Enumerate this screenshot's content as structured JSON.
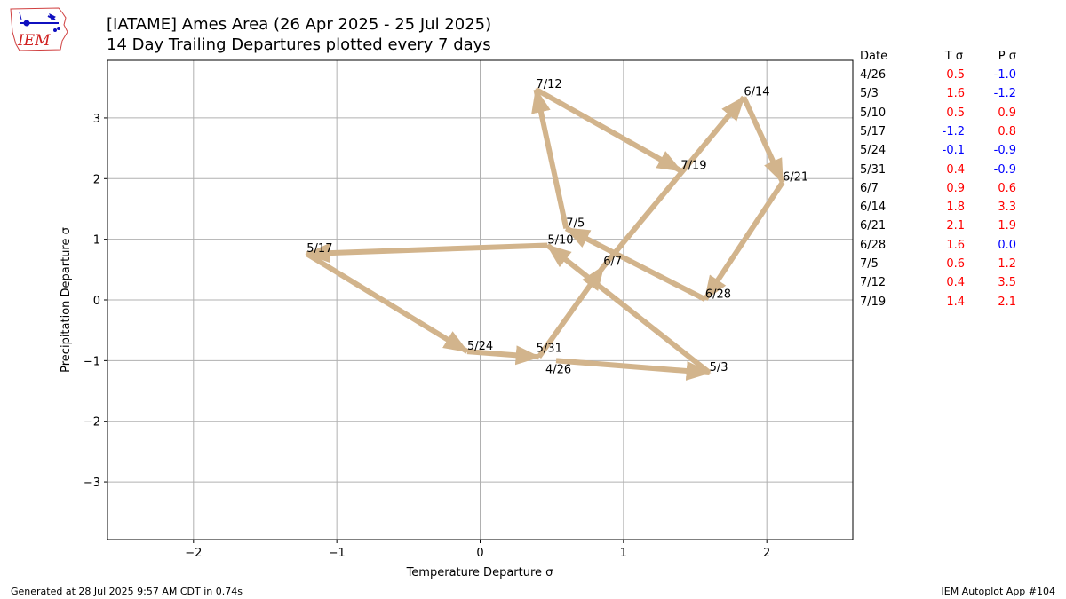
{
  "logo_text": "IEM",
  "title_line1": "[IATAME] Ames Area (26 Apr 2025 - 25 Jul 2025)",
  "title_line2": "14 Day Trailing Departures plotted every 7 days",
  "footer_left": "Generated at 28 Jul 2025 9:57 AM CDT in 0.74s",
  "footer_right": "IEM Autoplot App #104",
  "colors": {
    "arrow": "#d2b48c",
    "positive": "#ff0000",
    "negative": "#0000ff",
    "grid": "#b0b0b0"
  },
  "table": {
    "headers": {
      "date": "Date",
      "temp": "T σ",
      "precip": "P σ"
    },
    "rows": [
      {
        "date": "4/26",
        "t": "0.5",
        "p": "-1.0"
      },
      {
        "date": "5/3",
        "t": "1.6",
        "p": "-1.2"
      },
      {
        "date": "5/10",
        "t": "0.5",
        "p": "0.9"
      },
      {
        "date": "5/17",
        "t": "-1.2",
        "p": "0.8"
      },
      {
        "date": "5/24",
        "t": "-0.1",
        "p": "-0.9"
      },
      {
        "date": "5/31",
        "t": "0.4",
        "p": "-0.9"
      },
      {
        "date": "6/7",
        "t": "0.9",
        "p": "0.6"
      },
      {
        "date": "6/14",
        "t": "1.8",
        "p": "3.3"
      },
      {
        "date": "6/21",
        "t": "2.1",
        "p": "1.9"
      },
      {
        "date": "6/28",
        "t": "1.6",
        "p": "0.0"
      },
      {
        "date": "7/5",
        "t": "0.6",
        "p": "1.2"
      },
      {
        "date": "7/12",
        "t": "0.4",
        "p": "3.5"
      },
      {
        "date": "7/19",
        "t": "1.4",
        "p": "2.1"
      }
    ]
  },
  "chart_data": {
    "type": "line",
    "title": "[IATAME] Ames Area (26 Apr 2025 - 25 Jul 2025)",
    "subtitle": "14 Day Trailing Departures plotted every 7 days",
    "xlabel": "Temperature Departure σ",
    "ylabel": "Precipitation Departure σ",
    "xlim": [
      -2.6,
      2.6
    ],
    "ylim": [
      -3.95,
      3.95
    ],
    "xticks": [
      -2,
      -1,
      0,
      1,
      2
    ],
    "yticks": [
      -3,
      -2,
      -1,
      0,
      1,
      2,
      3
    ],
    "grid": true,
    "points": [
      {
        "label": "4/26",
        "x": 0.53,
        "y": -1.0
      },
      {
        "label": "5/3",
        "x": 1.6,
        "y": -1.2
      },
      {
        "label": "5/10",
        "x": 0.47,
        "y": 0.9
      },
      {
        "label": "5/17",
        "x": -1.21,
        "y": 0.76
      },
      {
        "label": "5/24",
        "x": -0.09,
        "y": -0.85
      },
      {
        "label": "5/31",
        "x": 0.41,
        "y": -0.94
      },
      {
        "label": "6/7",
        "x": 0.86,
        "y": 0.55
      },
      {
        "label": "6/14",
        "x": 1.84,
        "y": 3.34
      },
      {
        "label": "6/21",
        "x": 2.11,
        "y": 1.94
      },
      {
        "label": "6/28",
        "x": 1.57,
        "y": 0.01
      },
      {
        "label": "7/5",
        "x": 0.6,
        "y": 1.18
      },
      {
        "label": "7/12",
        "x": 0.39,
        "y": 3.47
      },
      {
        "label": "7/19",
        "x": 1.4,
        "y": 2.13
      }
    ]
  }
}
